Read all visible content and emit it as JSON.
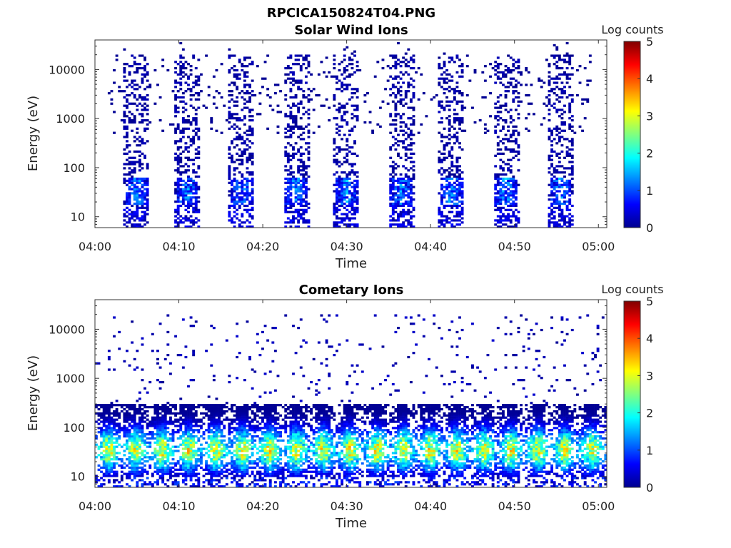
{
  "figure_title": "RPCICA150824T04.PNG",
  "chart_data": [
    {
      "type": "heatmap",
      "title": "Solar Wind Ions",
      "xlabel": "Time",
      "ylabel": "Energy (eV)",
      "x_ticks": [
        "04:00",
        "04:10",
        "04:20",
        "04:30",
        "04:40",
        "04:50",
        "05:00"
      ],
      "xlim": [
        "04:00",
        "05:01"
      ],
      "y_scale": "log",
      "y_ticks": [
        "10",
        "100",
        "1000",
        "10000"
      ],
      "ylim": [
        6,
        40000
      ],
      "colorbar": {
        "label": "Log counts",
        "ticks": [
          "0",
          "1",
          "2",
          "3",
          "4",
          "5"
        ],
        "range": [
          0,
          5
        ],
        "colormap": "jet"
      },
      "pattern": {
        "kind": "bursts",
        "burst_centers_min": [
          5.0,
          11.0,
          17.5,
          24.0,
          30.0,
          36.5,
          42.5,
          49.0,
          55.5
        ],
        "burst_halfwidth_min": 1.5,
        "background_energy_eV": [
          500,
          20000
        ],
        "core_energy_eV": [
          18,
          60
        ],
        "core_peak_log_counts": 1.8
      }
    },
    {
      "type": "heatmap",
      "title": "Cometary Ions",
      "xlabel": "Time",
      "ylabel": "Energy (eV)",
      "x_ticks": [
        "04:00",
        "04:10",
        "04:20",
        "04:30",
        "04:40",
        "04:50",
        "05:00"
      ],
      "xlim": [
        "04:00",
        "05:01"
      ],
      "y_scale": "log",
      "y_ticks": [
        "10",
        "100",
        "1000",
        "10000"
      ],
      "ylim": [
        6,
        40000
      ],
      "colorbar": {
        "label": "Log counts",
        "ticks": [
          "0",
          "1",
          "2",
          "3",
          "4",
          "5"
        ],
        "range": [
          0,
          5
        ],
        "colormap": "jet"
      },
      "pattern": {
        "kind": "oscillations",
        "period_min": 3.2,
        "band_energy_eV": [
          10,
          300
        ],
        "peak_energy_eV": 35,
        "peak_log_counts": 3.4,
        "sparse_energy_eV": [
          300,
          20000
        ]
      }
    }
  ]
}
